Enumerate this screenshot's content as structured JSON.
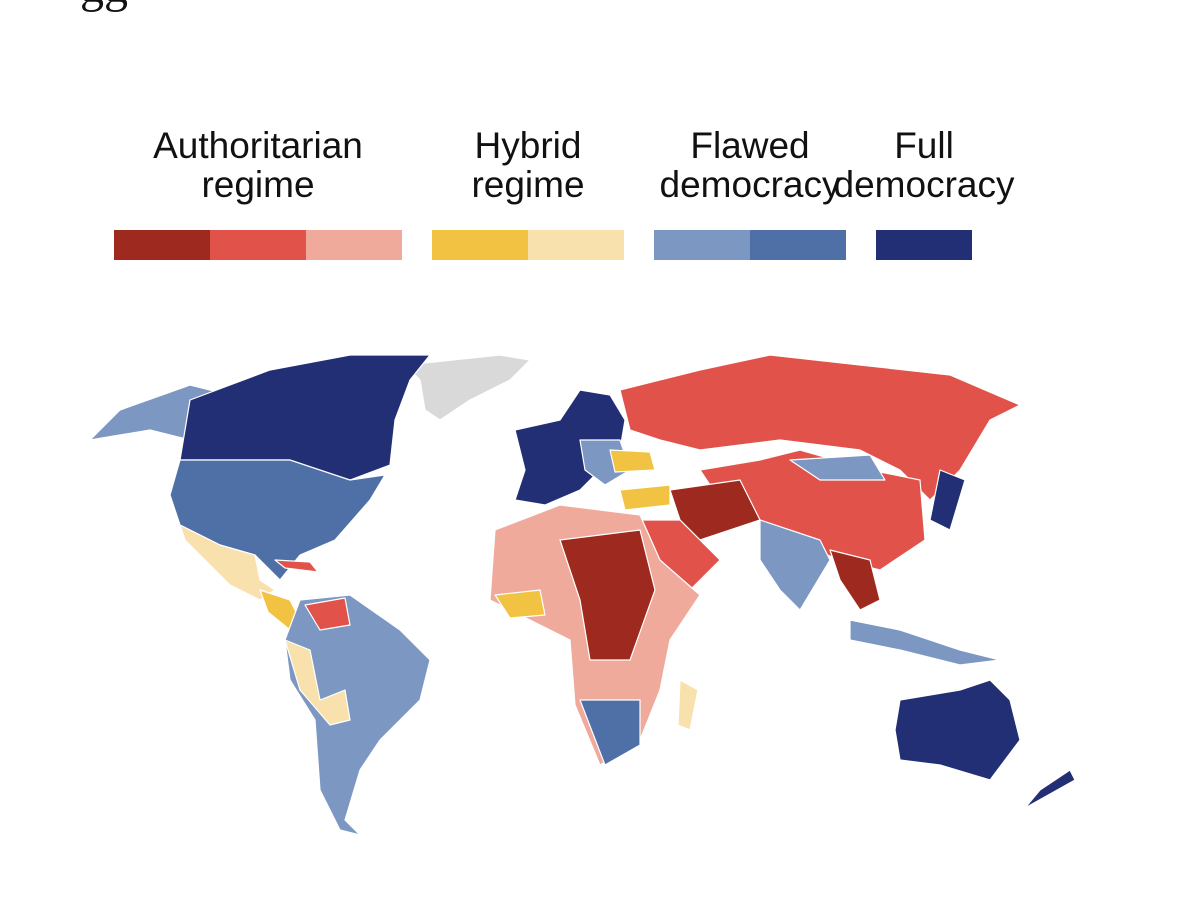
{
  "header": {
    "title_fragment": "gg"
  },
  "legend": {
    "items": [
      {
        "label": [
          "Authoritarian",
          "regime"
        ],
        "colors": [
          "#9e2a1f",
          "#e0524a",
          "#efaa9c"
        ]
      },
      {
        "label": [
          "Hybrid",
          "regime"
        ],
        "colors": [
          "#f2c242",
          "#f9e1ad"
        ]
      },
      {
        "label": [
          "Flawed",
          "democracy"
        ],
        "colors": [
          "#7b97c2",
          "#4f70a6"
        ]
      },
      {
        "label": [
          "Full",
          "democracy"
        ],
        "colors": [
          "#222f75"
        ]
      }
    ]
  }
}
